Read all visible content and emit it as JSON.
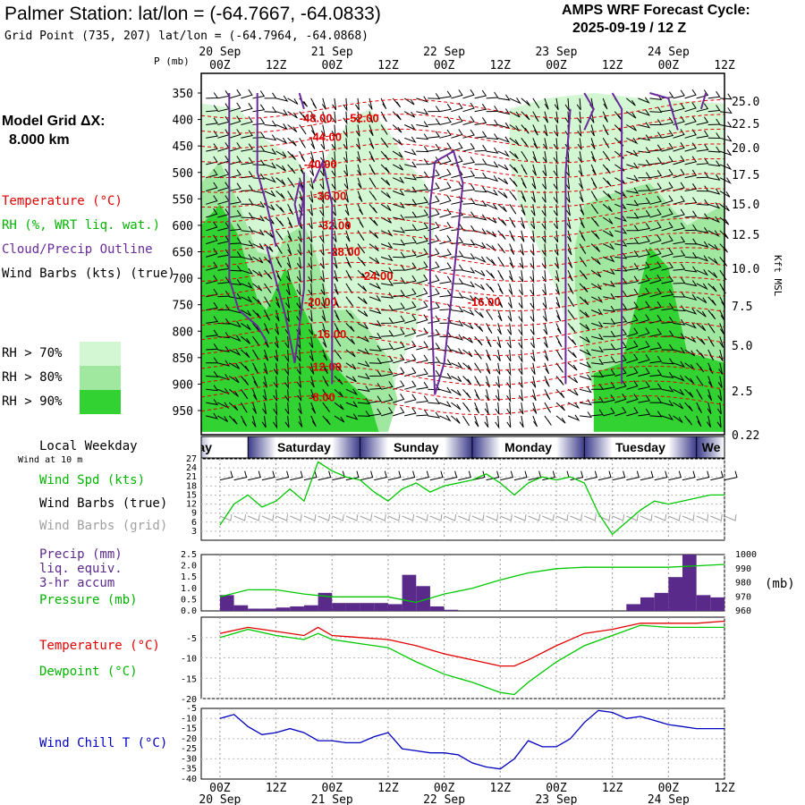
{
  "header": {
    "title": "Palmer Station:  lat/lon = (-64.7667, -64.0833)",
    "gridpoint": "Grid Point (735, 207) lat/lon = (-64.7964, -64.0868)",
    "cycle_line1": "AMPS WRF Forecast Cycle:",
    "cycle_line2": "2025-09-19 / 12  Z"
  },
  "left_legend": {
    "model_grid_label": "Model Grid ΔX:",
    "model_grid_value": "8.000 km",
    "temperature": "Temperature (°C)",
    "rh": "RH (%, WRT liq. wat.)",
    "cloud": "Cloud/Precip Outline",
    "wind": "Wind Barbs (kts) (true)",
    "rh70": "RH > 70%",
    "rh80": "RH > 80%",
    "rh90": "RH > 90%",
    "weekday": "Local Weekday",
    "wind10m": "Wind at 10 m",
    "wspd": "Wind Spd (kts)",
    "wbarbs_true": "Wind Barbs (true)",
    "wbarbs_grid": "Wind Barbs (grid)",
    "precip1": "Precip (mm)",
    "precip2": "liq. equiv.",
    "precip3": "3-hr accum",
    "pressure": "Pressure (mb)",
    "pressure_unit": "(mb)",
    "temp2": "Temperature (°C)",
    "dewpoint": "Dewpoint (°C)",
    "windchill": "Wind Chill T (°C)",
    "p_axis": "P (mb)",
    "kft_axis": "Kft MSL"
  },
  "colors": {
    "rh70": "#d2f7d2",
    "rh80": "#a0e8a0",
    "rh90": "#32d232",
    "temperature": "#e00000",
    "dewpoint": "#00c800",
    "windchill": "#0000c0",
    "precip": "#5a2a8a",
    "cloud": "#6a2a9a",
    "grid_barbs": "#a0a0a0"
  },
  "time_axis": {
    "hours_from_start": [
      0,
      12,
      24,
      36,
      48,
      60,
      72,
      84,
      96,
      108
    ],
    "tick_labels": [
      "00Z",
      "12Z",
      "00Z",
      "12Z",
      "00Z",
      "12Z",
      "00Z",
      "12Z",
      "00Z",
      "12Z"
    ],
    "date_labels": [
      "20 Sep",
      "21 Sep",
      "22 Sep",
      "23 Sep",
      "24 Sep"
    ],
    "weekdays": [
      "iday",
      "Saturday",
      "Sunday",
      "Monday",
      "Tuesday",
      "We"
    ]
  },
  "chart_data": [
    {
      "type": "heatmap",
      "name": "cross-section",
      "y_pressure_ticks": [
        350,
        400,
        450,
        500,
        550,
        600,
        650,
        700,
        750,
        800,
        850,
        900,
        950
      ],
      "y_height_ticks": [
        "25.0",
        "22.5",
        "20.0",
        "17.5",
        "15.0",
        "12.5",
        "10.0",
        "7.5",
        "5.0",
        "2.5",
        "0.22"
      ],
      "isotherm_labels": [
        {
          "text": "-48.00",
          "t": 17,
          "p": 405
        },
        {
          "text": "-52.00",
          "t": 27,
          "p": 405
        },
        {
          "text": "-44.00",
          "t": 19,
          "p": 440
        },
        {
          "text": "-40.00",
          "t": 18,
          "p": 492
        },
        {
          "text": "-36.00",
          "t": 20,
          "p": 552
        },
        {
          "text": "-32.00",
          "t": 21,
          "p": 608
        },
        {
          "text": "-28.00",
          "t": 23,
          "p": 658
        },
        {
          "text": "-24.00",
          "t": 30,
          "p": 703
        },
        {
          "text": "-20.00",
          "t": 18,
          "p": 752
        },
        {
          "text": "-16.00",
          "t": 20,
          "p": 813
        },
        {
          "text": "-12.00",
          "t": 19,
          "p": 875
        },
        {
          "text": "-8.00",
          "t": 19,
          "p": 932
        },
        {
          "text": "-16.00",
          "t": 53,
          "p": 752
        }
      ]
    },
    {
      "type": "line",
      "name": "wind-speed",
      "y_ticks": [
        3,
        6,
        9,
        12,
        15,
        18,
        21,
        24,
        27
      ],
      "ylim": [
        0,
        27
      ],
      "x": [
        0,
        3,
        6,
        9,
        12,
        15,
        18,
        21,
        24,
        27,
        30,
        33,
        36,
        39,
        42,
        45,
        48,
        51,
        54,
        57,
        60,
        63,
        66,
        69,
        72,
        75,
        78,
        81,
        84,
        87,
        90,
        93,
        96,
        99,
        102,
        105,
        108
      ],
      "values": [
        5,
        12,
        15,
        11,
        13,
        17,
        13,
        26,
        23,
        21,
        20,
        16,
        13,
        17,
        19,
        16,
        18,
        19,
        20,
        22,
        19,
        15,
        19,
        21,
        20,
        21,
        19,
        9,
        2,
        6,
        10,
        13,
        12,
        13,
        14,
        15,
        15
      ]
    },
    {
      "type": "bar",
      "name": "precip-pressure",
      "y_ticks_left": [
        "0.0",
        "0.5",
        "1.0",
        "1.5",
        "2.0",
        "2.5"
      ],
      "y_ticks_right": [
        960,
        970,
        980,
        990,
        1000
      ],
      "precip_hours": [
        0,
        3,
        6,
        9,
        12,
        15,
        18,
        21,
        24,
        27,
        30,
        33,
        36,
        39,
        42,
        45,
        48,
        51,
        54,
        57,
        60,
        63,
        66,
        69,
        72,
        75,
        78,
        81,
        84,
        87,
        90,
        93,
        96,
        99,
        102,
        105
      ],
      "precip_values": [
        0.7,
        0.25,
        0.1,
        0.1,
        0.15,
        0.2,
        0.25,
        0.8,
        0.35,
        0.35,
        0.35,
        0.35,
        0.3,
        1.6,
        1.1,
        0.2,
        0.05,
        0,
        0,
        0,
        0,
        0,
        0,
        0,
        0,
        0,
        0,
        0,
        0,
        0.3,
        0.6,
        0.8,
        1.5,
        2.5,
        0.7,
        0.6
      ],
      "pressure_x": [
        0,
        6,
        12,
        18,
        24,
        30,
        36,
        42,
        48,
        54,
        60,
        66,
        72,
        78,
        84,
        90,
        96,
        102,
        108
      ],
      "pressure_values": [
        970,
        975,
        975,
        972,
        970,
        970,
        970,
        966,
        972,
        976,
        982,
        987,
        990,
        991,
        991,
        991,
        991,
        992,
        993
      ]
    },
    {
      "type": "line",
      "name": "temperature-dewpoint",
      "y_ticks": [
        -20,
        -15,
        -10,
        -5
      ],
      "ylim": [
        -20,
        0
      ],
      "x": [
        0,
        6,
        12,
        18,
        21,
        24,
        30,
        36,
        42,
        48,
        54,
        60,
        63,
        66,
        72,
        78,
        84,
        90,
        96,
        102,
        108
      ],
      "series": [
        {
          "name": "Temperature",
          "values": [
            -4,
            -2.5,
            -3.5,
            -4.5,
            -2.5,
            -4.5,
            -5,
            -5.5,
            -7,
            -9,
            -10.5,
            -12,
            -12,
            -10.5,
            -7,
            -4,
            -3,
            -1.5,
            -1.5,
            -1.5,
            -1
          ]
        },
        {
          "name": "Dewpoint",
          "values": [
            -5,
            -3,
            -4.5,
            -5.5,
            -4,
            -5.5,
            -6.5,
            -7.5,
            -11,
            -14,
            -16,
            -18.5,
            -19,
            -16,
            -11,
            -7,
            -4.5,
            -2,
            -2.5,
            -2.5,
            -2.5
          ]
        }
      ]
    },
    {
      "type": "line",
      "name": "wind-chill",
      "y_ticks": [
        -40,
        -35,
        -30,
        -25,
        -20,
        -15,
        -10,
        -5
      ],
      "ylim": [
        -40,
        -5
      ],
      "x": [
        0,
        3,
        6,
        9,
        12,
        15,
        18,
        21,
        24,
        27,
        30,
        33,
        36,
        39,
        42,
        45,
        48,
        51,
        54,
        57,
        60,
        63,
        66,
        69,
        72,
        75,
        78,
        81,
        84,
        87,
        90,
        93,
        96,
        99,
        102,
        105,
        108
      ],
      "values": [
        -10,
        -8,
        -14,
        -18,
        -17,
        -15,
        -17,
        -21,
        -21,
        -22,
        -22,
        -19,
        -17,
        -25,
        -26,
        -27,
        -27,
        -28,
        -32,
        -34,
        -35,
        -30,
        -21,
        -24,
        -24,
        -20,
        -12,
        -6,
        -7,
        -10,
        -9,
        -11,
        -13,
        -14,
        -15,
        -15,
        -15
      ]
    }
  ]
}
